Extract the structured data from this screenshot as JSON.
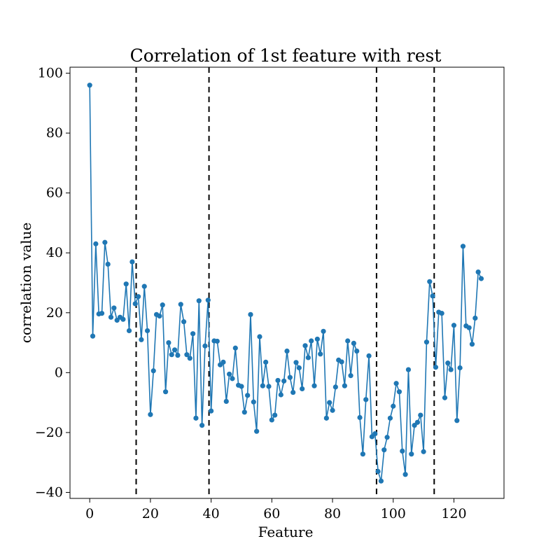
{
  "chart_data": {
    "type": "line",
    "title": "Correlation of 1st feature with rest",
    "xlabel": "Feature",
    "ylabel": "correlation value",
    "xlim": [
      -6.5,
      136.5
    ],
    "ylim": [
      -42,
      102
    ],
    "xticks": [
      0,
      20,
      40,
      60,
      80,
      100,
      120
    ],
    "yticks": [
      -40,
      -20,
      0,
      20,
      40,
      60,
      80,
      100
    ],
    "xtick_labels": [
      "0",
      "20",
      "40",
      "60",
      "80",
      "100",
      "120"
    ],
    "ytick_labels": [
      "−40",
      "−20",
      "0",
      "20",
      "40",
      "60",
      "80",
      "100"
    ],
    "grid": false,
    "series_color": "#1f77b4",
    "vline_color": "#000000",
    "vlines": [
      15.3,
      39.3,
      94.5,
      113.5
    ],
    "x": [
      0,
      1,
      2,
      3,
      4,
      5,
      6,
      7,
      8,
      9,
      10,
      11,
      12,
      13,
      14,
      15,
      16,
      17,
      18,
      19,
      20,
      21,
      22,
      23,
      24,
      25,
      26,
      27,
      28,
      29,
      30,
      31,
      32,
      33,
      34,
      35,
      36,
      37,
      38,
      39,
      40,
      41,
      42,
      43,
      44,
      45,
      46,
      47,
      48,
      49,
      50,
      51,
      52,
      53,
      54,
      55,
      56,
      57,
      58,
      59,
      60,
      61,
      62,
      63,
      64,
      65,
      66,
      67,
      68,
      69,
      70,
      71,
      72,
      73,
      74,
      75,
      76,
      77,
      78,
      79,
      80,
      81,
      82,
      83,
      84,
      85,
      86,
      87,
      88,
      89,
      90,
      91,
      92,
      93,
      94,
      95,
      96,
      97,
      98,
      99,
      100,
      101,
      102,
      103,
      104,
      105,
      106,
      107,
      108,
      109,
      110,
      111,
      112,
      113,
      114,
      115,
      116,
      117,
      118,
      119,
      120,
      121,
      122,
      123,
      124,
      125,
      126,
      127,
      128,
      129
    ],
    "values": [
      96,
      12.2,
      43,
      19.6,
      19.8,
      43.5,
      36.2,
      18.5,
      21.6,
      17.5,
      18.5,
      17.8,
      29.6,
      14,
      37,
      23,
      25.4,
      11,
      28.8,
      14,
      -14,
      0.6,
      19.4,
      18.9,
      22.6,
      -6.4,
      10,
      6,
      7.6,
      5.8,
      22.8,
      17,
      6,
      4.8,
      13,
      -15.2,
      24,
      -17.6,
      8.9,
      24.2,
      -12.8,
      10.6,
      10.5,
      2.6,
      3.5,
      -9.6,
      -0.5,
      -2,
      8.2,
      -4.2,
      -4.6,
      -13.2,
      -7.6,
      19.4,
      -9.8,
      -19.6,
      12,
      -4.4,
      3.5,
      -4.6,
      -15.8,
      -14.2,
      -2.6,
      -7.4,
      -2.8,
      7.2,
      -1.6,
      -6.6,
      3.4,
      1.6,
      -5.4,
      9,
      5,
      10.6,
      -4.4,
      11.2,
      6.2,
      13.8,
      -15.2,
      -10,
      -12.6,
      -4.8,
      4.2,
      3.6,
      -4.4,
      10.6,
      -1,
      9.8,
      7.2,
      -15,
      -27.2,
      -9,
      5.6,
      -21.4,
      -20.4,
      -33,
      -36.2,
      -25.8,
      -21.6,
      -15.2,
      -11.2,
      -3.6,
      -6.4,
      -26.2,
      -34,
      1,
      -27.2,
      -17.6,
      -16.6,
      -14.2,
      -26.4,
      10.2,
      30.4,
      25.6,
      1.8,
      20.2,
      19.8,
      -8.4,
      3.2,
      1,
      15.8,
      -16,
      1.6,
      42.2,
      15.6,
      15,
      9.5,
      18.2,
      33.6,
      31.4
    ]
  }
}
